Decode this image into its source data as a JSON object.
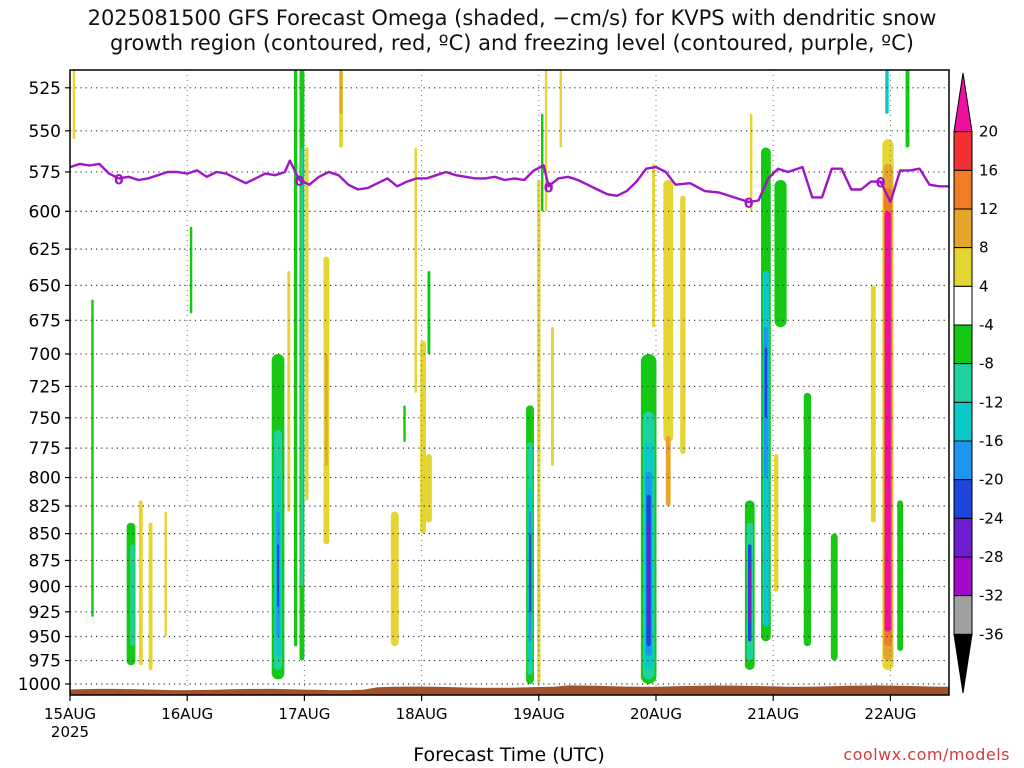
{
  "title": {
    "line1": "2025081500 GFS Forecast Omega (shaded, −cm/s) for KVPS with dendritic snow",
    "line2": "growth region (contoured, red, ºC) and freezing level (contoured, purple, ºC)"
  },
  "footer": {
    "xlabel": "Forecast Time (UTC)",
    "credit": "coolwx.com/models"
  },
  "chart_data": {
    "type": "heatmap",
    "y_axis": {
      "label": "",
      "ticks": [
        525,
        550,
        575,
        600,
        625,
        650,
        675,
        700,
        725,
        750,
        775,
        800,
        825,
        850,
        875,
        900,
        925,
        950,
        975,
        1000
      ],
      "range": [
        1012,
        515
      ],
      "scale": "log-pressure",
      "grid": "dotted"
    },
    "x_axis": {
      "label": "Forecast Time (UTC)",
      "ticks": [
        {
          "label": "15AUG",
          "hour": 0
        },
        {
          "label": "16AUG",
          "hour": 24
        },
        {
          "label": "17AUG",
          "hour": 48
        },
        {
          "label": "18AUG",
          "hour": 72
        },
        {
          "label": "19AUG",
          "hour": 96
        },
        {
          "label": "20AUG",
          "hour": 120
        },
        {
          "label": "21AUG",
          "hour": 144
        },
        {
          "label": "22AUG",
          "hour": 168
        }
      ],
      "year_label": "2025",
      "range_hours": [
        0,
        180
      ]
    },
    "colorbar": {
      "ticks": [
        20,
        16,
        12,
        8,
        4,
        -4,
        -8,
        -12,
        -16,
        -20,
        -24,
        -28,
        -32,
        -36
      ],
      "colors": [
        "#ef0ea0",
        "#f23232",
        "#ef7d25",
        "#e5a529",
        "#e5d532",
        "#ffffff",
        "#14c814",
        "#1ed2a0",
        "#0ac8c8",
        "#1e96f0",
        "#1e46dc",
        "#6e1ed2",
        "#a00ac8",
        "#a0a0a0",
        "#000000"
      ]
    },
    "freezing_level": {
      "label": "0",
      "color": "#a014c8",
      "points": [
        [
          0,
          572
        ],
        [
          2,
          570
        ],
        [
          4,
          571
        ],
        [
          6,
          570
        ],
        [
          8,
          576
        ],
        [
          10,
          579
        ],
        [
          12,
          578
        ],
        [
          14,
          580
        ],
        [
          16,
          579
        ],
        [
          18,
          577
        ],
        [
          20,
          575
        ],
        [
          22,
          575
        ],
        [
          24,
          576
        ],
        [
          26,
          574
        ],
        [
          28,
          578
        ],
        [
          30,
          575
        ],
        [
          32,
          576
        ],
        [
          34,
          579
        ],
        [
          36,
          582
        ],
        [
          38,
          579
        ],
        [
          40,
          576
        ],
        [
          42,
          577
        ],
        [
          44,
          575
        ],
        [
          45,
          568
        ],
        [
          47,
          580
        ],
        [
          49,
          583
        ],
        [
          51,
          578
        ],
        [
          53,
          575
        ],
        [
          55,
          577
        ],
        [
          57,
          583
        ],
        [
          59,
          586
        ],
        [
          61,
          585
        ],
        [
          63,
          582
        ],
        [
          65,
          579
        ],
        [
          67,
          584
        ],
        [
          69,
          581
        ],
        [
          71,
          579
        ],
        [
          73,
          579
        ],
        [
          75,
          577
        ],
        [
          77,
          575
        ],
        [
          79,
          577
        ],
        [
          81,
          578
        ],
        [
          83,
          579
        ],
        [
          85,
          579
        ],
        [
          87,
          578
        ],
        [
          89,
          580
        ],
        [
          91,
          579
        ],
        [
          93,
          580
        ],
        [
          95,
          574
        ],
        [
          97,
          571
        ],
        [
          98,
          584
        ],
        [
          100,
          579
        ],
        [
          102,
          578
        ],
        [
          104,
          580
        ],
        [
          106,
          583
        ],
        [
          108,
          586
        ],
        [
          110,
          589
        ],
        [
          112,
          590
        ],
        [
          114,
          587
        ],
        [
          116,
          581
        ],
        [
          118,
          573
        ],
        [
          120,
          572
        ],
        [
          122,
          575
        ],
        [
          124,
          583
        ],
        [
          127,
          582
        ],
        [
          130,
          587
        ],
        [
          133,
          588
        ],
        [
          136,
          591
        ],
        [
          139,
          594
        ],
        [
          141,
          593
        ],
        [
          143,
          579
        ],
        [
          145,
          573
        ],
        [
          147,
          575
        ],
        [
          150,
          572
        ],
        [
          152,
          591
        ],
        [
          154,
          591
        ],
        [
          156,
          573
        ],
        [
          158,
          573
        ],
        [
          160,
          586
        ],
        [
          162,
          586
        ],
        [
          164,
          581
        ],
        [
          166,
          581
        ],
        [
          168,
          594
        ],
        [
          170,
          574
        ],
        [
          172,
          574
        ],
        [
          174,
          573
        ],
        [
          176,
          583
        ],
        [
          178,
          584
        ],
        [
          180,
          584
        ]
      ]
    },
    "shaded_regions": [
      {
        "hour": 0.8,
        "p_top": 515,
        "p_bot": 555,
        "w": 0.5,
        "c": "#e5d532"
      },
      {
        "hour": 4.6,
        "p_top": 660,
        "p_bot": 930,
        "w": 0.5,
        "c": "#14c814"
      },
      {
        "hour": 12.5,
        "p_top": 840,
        "p_bot": 980,
        "w": 1.8,
        "c": "#14c814"
      },
      {
        "hour": 12.8,
        "p_top": 860,
        "p_bot": 960,
        "w": 0.9,
        "c": "#1ed2a0"
      },
      {
        "hour": 14.5,
        "p_top": 820,
        "p_bot": 980,
        "w": 0.8,
        "c": "#e5d532"
      },
      {
        "hour": 16.5,
        "p_top": 840,
        "p_bot": 985,
        "w": 0.8,
        "c": "#e5d532"
      },
      {
        "hour": 19.6,
        "p_top": 830,
        "p_bot": 950,
        "w": 0.5,
        "c": "#e5d532"
      },
      {
        "hour": 24.8,
        "p_top": 610,
        "p_bot": 670,
        "w": 0.5,
        "c": "#14c814"
      },
      {
        "hour": 42.6,
        "p_top": 700,
        "p_bot": 995,
        "w": 2.6,
        "c": "#14c814"
      },
      {
        "hour": 42.6,
        "p_top": 760,
        "p_bot": 985,
        "w": 1.7,
        "c": "#1ed2a0"
      },
      {
        "hour": 42.6,
        "p_top": 800,
        "p_bot": 970,
        "w": 1.1,
        "c": "#0ac8c8"
      },
      {
        "hour": 42.6,
        "p_top": 830,
        "p_bot": 950,
        "w": 0.7,
        "c": "#1e96f0"
      },
      {
        "hour": 42.6,
        "p_top": 860,
        "p_bot": 920,
        "w": 0.4,
        "c": "#1e46dc"
      },
      {
        "hour": 46.2,
        "p_top": 515,
        "p_bot": 960,
        "w": 0.7,
        "c": "#14c814"
      },
      {
        "hour": 47.5,
        "p_top": 515,
        "p_bot": 975,
        "w": 1.0,
        "c": "#14c814"
      },
      {
        "hour": 47.5,
        "p_top": 560,
        "p_bot": 900,
        "w": 0.5,
        "c": "#1ed2a0"
      },
      {
        "hour": 48.5,
        "p_top": 560,
        "p_bot": 820,
        "w": 0.7,
        "c": "#e5d532"
      },
      {
        "hour": 44.8,
        "p_top": 640,
        "p_bot": 830,
        "w": 0.6,
        "c": "#e5d532"
      },
      {
        "hour": 52.5,
        "p_top": 630,
        "p_bot": 860,
        "w": 1.2,
        "c": "#e5d532"
      },
      {
        "hour": 52.5,
        "p_top": 700,
        "p_bot": 790,
        "w": 0.5,
        "c": "#e5a529"
      },
      {
        "hour": 55.5,
        "p_top": 515,
        "p_bot": 560,
        "w": 0.8,
        "c": "#e5d532"
      },
      {
        "hour": 55.5,
        "p_top": 515,
        "p_bot": 540,
        "w": 0.5,
        "c": "#e5a529"
      },
      {
        "hour": 70.8,
        "p_top": 560,
        "p_bot": 730,
        "w": 0.5,
        "c": "#e5d532"
      },
      {
        "hour": 72.3,
        "p_top": 690,
        "p_bot": 850,
        "w": 1.2,
        "c": "#e5d532"
      },
      {
        "hour": 73.5,
        "p_top": 780,
        "p_bot": 840,
        "w": 1.2,
        "c": "#e5d532"
      },
      {
        "hour": 73.5,
        "p_top": 640,
        "p_bot": 700,
        "w": 0.6,
        "c": "#14c814"
      },
      {
        "hour": 66.5,
        "p_top": 830,
        "p_bot": 960,
        "w": 1.6,
        "c": "#e5d532"
      },
      {
        "hour": 68.5,
        "p_top": 740,
        "p_bot": 770,
        "w": 0.5,
        "c": "#14c814"
      },
      {
        "hour": 94.2,
        "p_top": 740,
        "p_bot": 1000,
        "w": 1.6,
        "c": "#14c814"
      },
      {
        "hour": 94.2,
        "p_top": 770,
        "p_bot": 990,
        "w": 1.1,
        "c": "#1ed2a0"
      },
      {
        "hour": 94.2,
        "p_top": 810,
        "p_bot": 975,
        "w": 0.7,
        "c": "#0ac8c8"
      },
      {
        "hour": 94.2,
        "p_top": 830,
        "p_bot": 955,
        "w": 0.5,
        "c": "#1e96f0"
      },
      {
        "hour": 94.2,
        "p_top": 850,
        "p_bot": 925,
        "w": 0.3,
        "c": "#1e46dc"
      },
      {
        "hour": 96.0,
        "p_top": 580,
        "p_bot": 1000,
        "w": 0.7,
        "c": "#e5d532"
      },
      {
        "hour": 97.5,
        "p_top": 515,
        "p_bot": 600,
        "w": 0.5,
        "c": "#e5d532"
      },
      {
        "hour": 100.5,
        "p_top": 515,
        "p_bot": 560,
        "w": 0.5,
        "c": "#e5d532"
      },
      {
        "hour": 98.8,
        "p_top": 680,
        "p_bot": 790,
        "w": 0.6,
        "c": "#e5d532"
      },
      {
        "hour": 96.7,
        "p_top": 540,
        "p_bot": 600,
        "w": 0.5,
        "c": "#14c814"
      },
      {
        "hour": 118.5,
        "p_top": 700,
        "p_bot": 1000,
        "w": 3.2,
        "c": "#14c814"
      },
      {
        "hour": 118.5,
        "p_top": 745,
        "p_bot": 995,
        "w": 2.4,
        "c": "#1ed2a0"
      },
      {
        "hour": 118.5,
        "p_top": 770,
        "p_bot": 985,
        "w": 1.8,
        "c": "#0ac8c8"
      },
      {
        "hour": 118.5,
        "p_top": 795,
        "p_bot": 970,
        "w": 1.3,
        "c": "#1e96f0"
      },
      {
        "hour": 118.5,
        "p_top": 815,
        "p_bot": 960,
        "w": 0.9,
        "c": "#1e46dc"
      },
      {
        "hour": 118.5,
        "p_top": 840,
        "p_bot": 940,
        "w": 0.5,
        "c": "#6e1ed2"
      },
      {
        "hour": 122.5,
        "p_top": 580,
        "p_bot": 770,
        "w": 2.0,
        "c": "#e5d532"
      },
      {
        "hour": 122.5,
        "p_top": 765,
        "p_bot": 825,
        "w": 1.0,
        "c": "#e5a529"
      },
      {
        "hour": 125.5,
        "p_top": 590,
        "p_bot": 780,
        "w": 1.1,
        "c": "#e5d532"
      },
      {
        "hour": 119.5,
        "p_top": 570,
        "p_bot": 680,
        "w": 0.6,
        "c": "#e5d532"
      },
      {
        "hour": 139.5,
        "p_top": 540,
        "p_bot": 600,
        "w": 0.5,
        "c": "#e5d532"
      },
      {
        "hour": 139.2,
        "p_top": 820,
        "p_bot": 985,
        "w": 2.0,
        "c": "#14c814"
      },
      {
        "hour": 139.2,
        "p_top": 840,
        "p_bot": 975,
        "w": 1.3,
        "c": "#1ed2a0"
      },
      {
        "hour": 139.2,
        "p_top": 860,
        "p_bot": 955,
        "w": 0.7,
        "c": "#1e46dc"
      },
      {
        "hour": 139.2,
        "p_top": 880,
        "p_bot": 935,
        "w": 0.4,
        "c": "#a00ac8"
      },
      {
        "hour": 142.5,
        "p_top": 560,
        "p_bot": 955,
        "w": 2.0,
        "c": "#14c814"
      },
      {
        "hour": 142.5,
        "p_top": 640,
        "p_bot": 940,
        "w": 1.3,
        "c": "#0ac8c8"
      },
      {
        "hour": 142.5,
        "p_top": 680,
        "p_bot": 800,
        "w": 0.8,
        "c": "#1e96f0"
      },
      {
        "hour": 142.5,
        "p_top": 695,
        "p_bot": 750,
        "w": 0.5,
        "c": "#1e46dc"
      },
      {
        "hour": 145.5,
        "p_top": 580,
        "p_bot": 680,
        "w": 2.5,
        "c": "#14c814"
      },
      {
        "hour": 144.6,
        "p_top": 780,
        "p_bot": 905,
        "w": 0.9,
        "c": "#e5d532"
      },
      {
        "hour": 151.0,
        "p_top": 730,
        "p_bot": 960,
        "w": 1.5,
        "c": "#14c814"
      },
      {
        "hour": 156.5,
        "p_top": 850,
        "p_bot": 975,
        "w": 1.4,
        "c": "#14c814"
      },
      {
        "hour": 164.5,
        "p_top": 650,
        "p_bot": 840,
        "w": 1.0,
        "c": "#e5d532"
      },
      {
        "hour": 167.5,
        "p_top": 555,
        "p_bot": 985,
        "w": 2.3,
        "c": "#e5d532"
      },
      {
        "hour": 167.5,
        "p_top": 570,
        "p_bot": 975,
        "w": 1.9,
        "c": "#e5a529"
      },
      {
        "hour": 167.5,
        "p_top": 585,
        "p_bot": 960,
        "w": 1.6,
        "c": "#ef7d25"
      },
      {
        "hour": 167.5,
        "p_top": 600,
        "p_bot": 945,
        "w": 1.3,
        "c": "#ef0ea0"
      },
      {
        "hour": 170.0,
        "p_top": 820,
        "p_bot": 965,
        "w": 1.2,
        "c": "#14c814"
      },
      {
        "hour": 171.5,
        "p_top": 515,
        "p_bot": 560,
        "w": 0.8,
        "c": "#14c814"
      },
      {
        "hour": 167.3,
        "p_top": 515,
        "p_bot": 540,
        "w": 0.7,
        "c": "#0ac8c8"
      }
    ],
    "ground_color": "#a0522d"
  }
}
